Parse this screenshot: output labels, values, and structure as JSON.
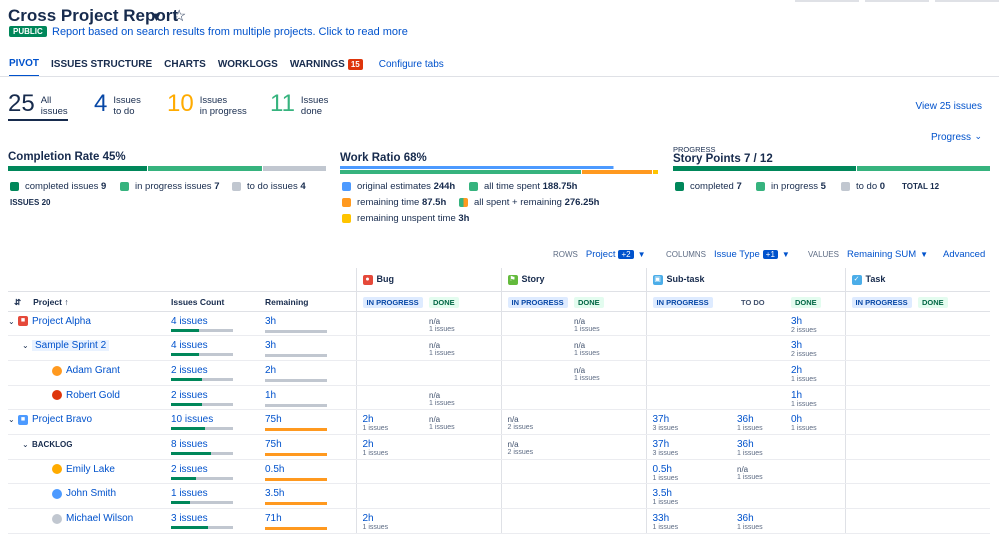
{
  "title": "Cross Project Report",
  "public_badge": "PUBLIC",
  "description": "Report based on search results from multiple projects. Click to read more",
  "tabs": [
    "PIVOT",
    "ISSUES STRUCTURE",
    "CHARTS",
    "WORKLOGS",
    "WARNINGS"
  ],
  "warnings_count": "15",
  "configure_tabs": "Configure tabs",
  "stats": [
    {
      "num": "25",
      "l1": "All",
      "l2": "issues"
    },
    {
      "num": "4",
      "l1": "Issues",
      "l2": "to do"
    },
    {
      "num": "10",
      "l1": "Issues",
      "l2": "in progress"
    },
    {
      "num": "11",
      "l1": "Issues",
      "l2": "done"
    }
  ],
  "view_issues": "View 25 issues",
  "progress_dropdown": "Progress",
  "completion": {
    "title": "Completion Rate",
    "pct": "45%",
    "legend": [
      {
        "label": "completed issues",
        "value": "9"
      },
      {
        "label": "in progress issues",
        "value": "7"
      },
      {
        "label": "to do issues",
        "value": "4"
      }
    ],
    "total_label": "ISSUES",
    "total": "20"
  },
  "work_ratio": {
    "title": "Work Ratio",
    "pct": "68%",
    "legend": [
      {
        "label": "original estimates",
        "value": "244h"
      },
      {
        "label": "all time spent",
        "value": "188.75h"
      },
      {
        "label": "remaining time",
        "value": "87.5h"
      },
      {
        "label": "all spent + remaining",
        "value": "276.25h"
      },
      {
        "label": "remaining unspent time",
        "value": "3h"
      }
    ]
  },
  "story_points": {
    "caption": "PROGRESS",
    "title": "Story Points",
    "value": "7 / 12",
    "legend": [
      {
        "label": "completed",
        "value": "7"
      },
      {
        "label": "in progress",
        "value": "5"
      },
      {
        "label": "to do",
        "value": "0"
      }
    ],
    "total_label": "TOTAL",
    "total": "12"
  },
  "controls": {
    "rows_label": "ROWS",
    "rows_value": "Project",
    "rows_badge": "+2",
    "columns_label": "COLUMNS",
    "columns_value": "Issue Type",
    "columns_badge": "+1",
    "values_label": "VALUES",
    "values_value": "Remaining SUM",
    "advanced": "Advanced"
  },
  "table": {
    "col_project": "Project",
    "col_count": "Issues Count",
    "col_remaining": "Remaining",
    "types": [
      "Bug",
      "Story",
      "Sub-task",
      "Task"
    ],
    "status_in_progress": "IN PROGRESS",
    "status_done": "DONE",
    "status_todo": "TO DO",
    "rows": [
      {
        "name": "Project Alpha",
        "count": "4 issues",
        "rem": "3h",
        "bug_done": "n/a",
        "bug_done_sub": "1 issues",
        "story_done": "n/a",
        "story_done_sub": "1 issues",
        "sub_done": "3h",
        "sub_done_sub": "2 issues"
      },
      {
        "name": "Sample Sprint 2",
        "count": "4 issues",
        "rem": "3h",
        "bug_done": "n/a",
        "bug_done_sub": "1 issues",
        "story_done": "n/a",
        "story_done_sub": "1 issues",
        "sub_done": "3h",
        "sub_done_sub": "2 issues"
      },
      {
        "name": "Adam Grant",
        "count": "2 issues",
        "rem": "2h",
        "story_done": "n/a",
        "story_done_sub": "1 issues",
        "sub_done": "2h",
        "sub_done_sub": "1 issues"
      },
      {
        "name": "Robert Gold",
        "count": "2 issues",
        "rem": "1h",
        "bug_done": "n/a",
        "bug_done_sub": "1 issues",
        "sub_done": "1h",
        "sub_done_sub": "1 issues"
      },
      {
        "name": "Project Bravo",
        "count": "10 issues",
        "rem": "75h",
        "bug_ip": "2h",
        "bug_ip_sub": "1 issues",
        "bug_done": "n/a",
        "bug_done_sub": "1 issues",
        "story_ip": "n/a",
        "story_ip_sub": "2 issues",
        "sub_ip": "37h",
        "sub_ip_sub": "3 issues",
        "sub_todo": "36h",
        "sub_todo_sub": "1 issues",
        "sub_done": "0h",
        "sub_done_sub": "1 issues"
      },
      {
        "name": "BACKLOG",
        "count": "8 issues",
        "rem": "75h",
        "bug_ip": "2h",
        "bug_ip_sub": "1 issues",
        "story_ip": "n/a",
        "story_ip_sub": "2 issues",
        "sub_ip": "37h",
        "sub_ip_sub": "3 issues",
        "sub_todo": "36h",
        "sub_todo_sub": "1 issues"
      },
      {
        "name": "Emily Lake",
        "count": "2 issues",
        "rem": "0.5h",
        "sub_ip": "0.5h",
        "sub_ip_sub": "1 issues",
        "sub_todo": "n/a",
        "sub_todo_sub": "1 issues"
      },
      {
        "name": "John Smith",
        "count": "1 issues",
        "rem": "3.5h",
        "sub_ip": "3.5h",
        "sub_ip_sub": "1 issues"
      },
      {
        "name": "Michael Wilson",
        "count": "3 issues",
        "rem": "71h",
        "bug_ip": "2h",
        "bug_ip_sub": "1 issues",
        "sub_ip": "33h",
        "sub_ip_sub": "1 issues",
        "sub_todo": "36h",
        "sub_todo_sub": "1 issues"
      }
    ]
  },
  "colors": {
    "green_dark": "#00875a",
    "green": "#36b37e",
    "grey": "#c1c7d0",
    "blue": "#4c9aff",
    "orange": "#ff991f",
    "yellow": "#ffc400",
    "primary": "#0052cc"
  }
}
